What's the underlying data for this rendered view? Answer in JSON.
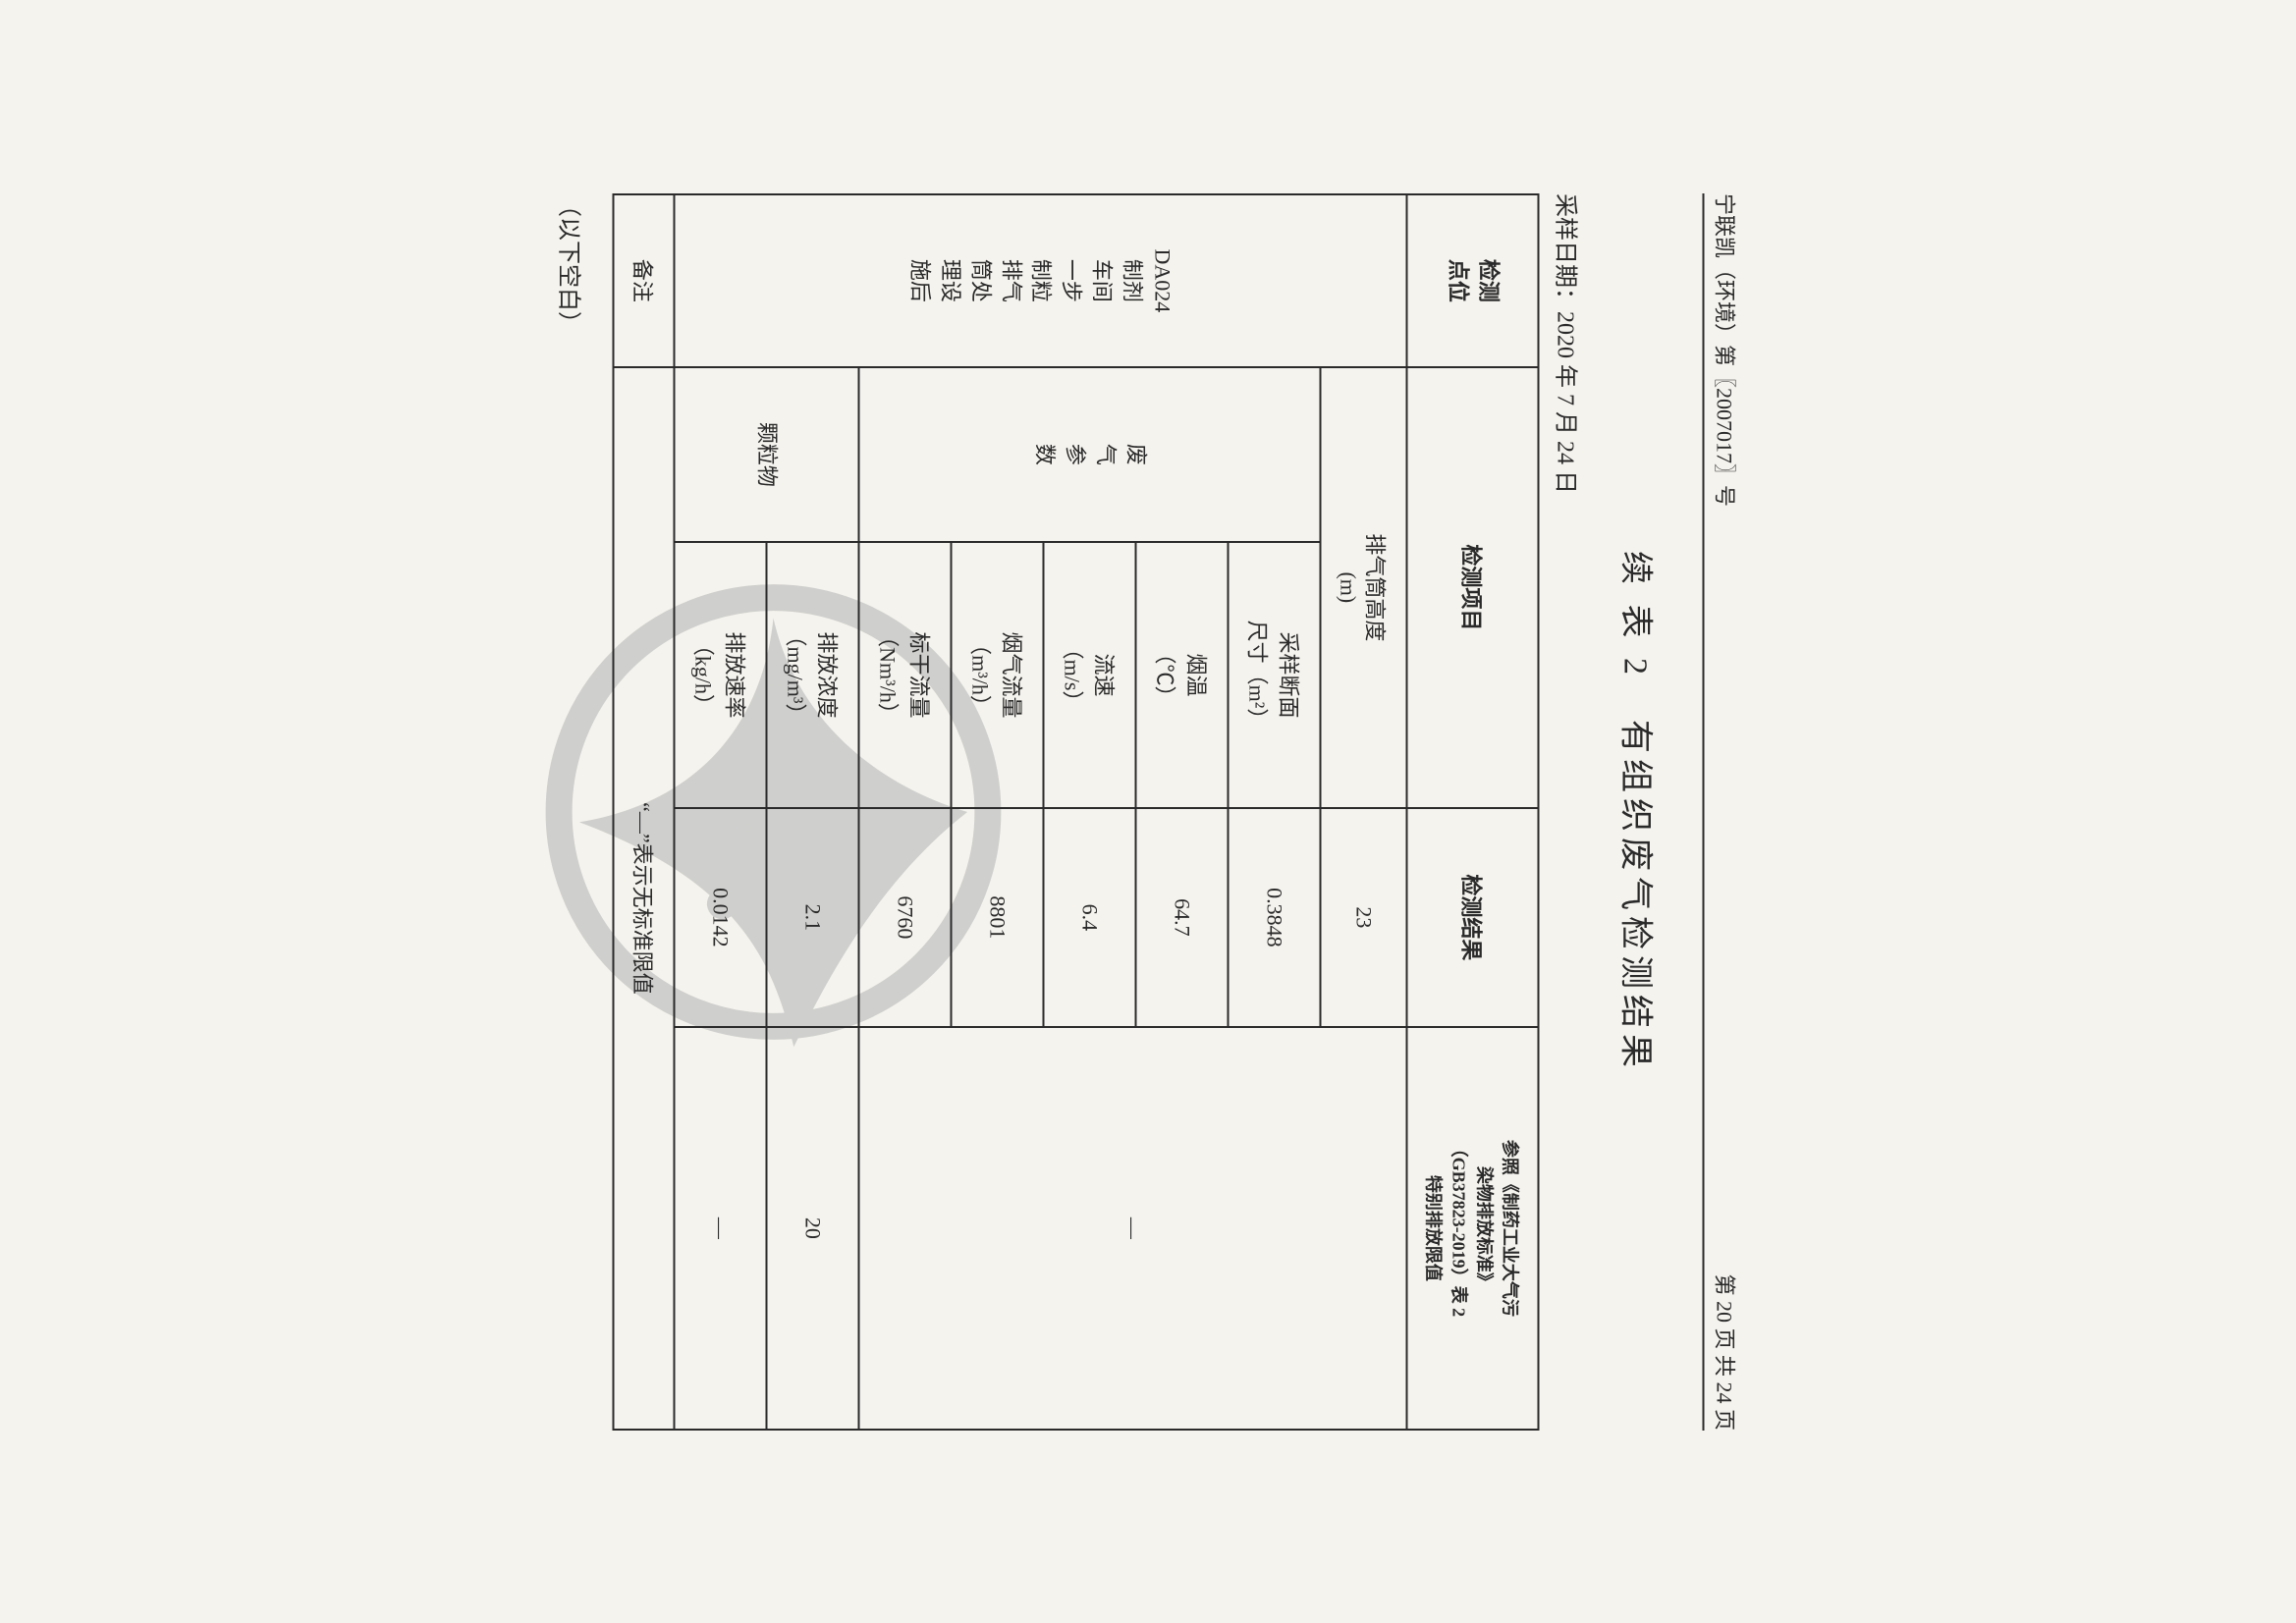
{
  "header_left": "宁联凯（环境）第〖2007017〗号",
  "header_right": "第 20 页 共 24 页",
  "title": "续 表 2　有组织废气检测结果",
  "sample_date": "采样日期：2020 年 7 月 24 日",
  "cols": {
    "c1": "检测\n点位",
    "c2": "检测项目",
    "c3": "检测结果",
    "c4": "参照《制药工业大气污\n染物排放标准》\n（GB37823-2019）表 2\n特别排放限值"
  },
  "point_location": "DA024\n制剂\n车间\n一步\n制粒\n排气\n筒处\n理设\n施后",
  "rows": [
    {
      "item": "排气筒高度\n(m)",
      "sub": "",
      "result": "23",
      "limit": ""
    },
    {
      "item": "",
      "sub": "采样断面\n尺寸（m²）",
      "result": "0.3848",
      "limit": ""
    },
    {
      "item": "",
      "sub": "烟温\n（℃）",
      "result": "64.7",
      "limit": ""
    },
    {
      "item": "废\n气\n参\n数",
      "sub": "流速\n（m/s）",
      "result": "6.4",
      "limit": "—"
    },
    {
      "item": "",
      "sub": "烟气流量\n（m³/h）",
      "result": "8801",
      "limit": ""
    },
    {
      "item": "",
      "sub": "标干流量\n（Nm³/h）",
      "result": "6760",
      "limit": ""
    },
    {
      "item": "颗粒物",
      "sub": "排放浓度\n（mg/m³）",
      "result": "2.1",
      "limit": "20"
    },
    {
      "item": "",
      "sub": "排放速率\n（kg/h）",
      "result": "0.0142",
      "limit": "—"
    }
  ],
  "remark_label": "备注",
  "remark_text": "“—”表示无标准限值",
  "blank_note": "（以下空白）",
  "watermark_color": "#8a8f91"
}
